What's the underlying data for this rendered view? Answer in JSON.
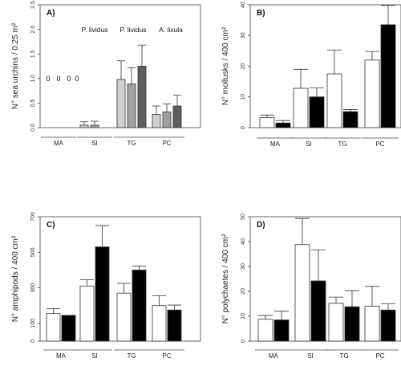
{
  "chart_data": [
    {
      "type": "bar",
      "panel": "A)",
      "ylabel": "N° sea urchins / 0.25 m²",
      "ylim": [
        0,
        2.5
      ],
      "yticks": [
        "0.0",
        "0.5",
        "1.0",
        "1.5",
        "2.0",
        "2.5"
      ],
      "categories": [
        "MA",
        "SI",
        "TG",
        "PC"
      ],
      "series_labels": [
        "P. lividus",
        "P. lividus",
        "A. lixula"
      ],
      "colors": [
        "#d0d0d0",
        "#a0a0a0",
        "#5f5f5f"
      ],
      "values": [
        [
          0,
          0,
          0
        ],
        [
          0.05,
          0.05,
          0
        ],
        [
          0.98,
          0.89,
          1.25
        ],
        [
          0.27,
          0.32,
          0.44
        ]
      ],
      "errors": [
        [
          0,
          0,
          0
        ],
        [
          0.07,
          0.08,
          0
        ],
        [
          0.38,
          0.33,
          0.43
        ],
        [
          0.17,
          0.16,
          0.22
        ]
      ],
      "zero_labels": [
        "0",
        "0",
        "0",
        "0"
      ]
    },
    {
      "type": "bar",
      "panel": "B)",
      "ylabel": "N° mollusks / 400 cm²",
      "ylim": [
        0,
        40
      ],
      "yticks": [
        "0",
        "10",
        "20",
        "30",
        "40"
      ],
      "categories": [
        "MA",
        "SI",
        "TG",
        "PC"
      ],
      "colors": [
        "#ffffff",
        "#000000"
      ],
      "values": [
        [
          3.3,
          1.5
        ],
        [
          12.8,
          10.0
        ],
        [
          17.5,
          5.2
        ],
        [
          22.0,
          33.5
        ]
      ],
      "errors": [
        [
          0.8,
          0.8
        ],
        [
          6.2,
          2.9
        ],
        [
          7.8,
          0.7
        ],
        [
          2.8,
          6.3
        ]
      ]
    },
    {
      "type": "bar",
      "panel": "C)",
      "ylabel": "N° amphipods / 400 cm²",
      "ylim": [
        0,
        700
      ],
      "yticks": [
        "0",
        "100",
        "300",
        "500",
        "700"
      ],
      "categories": [
        "MA",
        "SI",
        "TG",
        "PC"
      ],
      "colors": [
        "#ffffff",
        "#000000"
      ],
      "values": [
        [
          155,
          145
        ],
        [
          310,
          530
        ],
        [
          270,
          400
        ],
        [
          200,
          175
        ]
      ],
      "errors": [
        [
          28,
          0
        ],
        [
          35,
          120
        ],
        [
          55,
          22
        ],
        [
          55,
          28
        ]
      ]
    },
    {
      "type": "bar",
      "panel": "D)",
      "ylabel": "N° polychaetes / 400 cm²",
      "ylim": [
        0,
        50
      ],
      "yticks": [
        "0",
        "10",
        "20",
        "30",
        "40",
        "50"
      ],
      "categories": [
        "MA",
        "SI",
        "TG",
        "PC"
      ],
      "colors": [
        "#ffffff",
        "#000000"
      ],
      "values": [
        [
          8.8,
          8.5
        ],
        [
          38.8,
          24.2
        ],
        [
          15.2,
          13.8
        ],
        [
          14.0,
          12.5
        ]
      ],
      "errors": [
        [
          1.5,
          3.5
        ],
        [
          10.5,
          12.5
        ],
        [
          2.5,
          6.5
        ],
        [
          8.0,
          2.5
        ]
      ]
    }
  ]
}
